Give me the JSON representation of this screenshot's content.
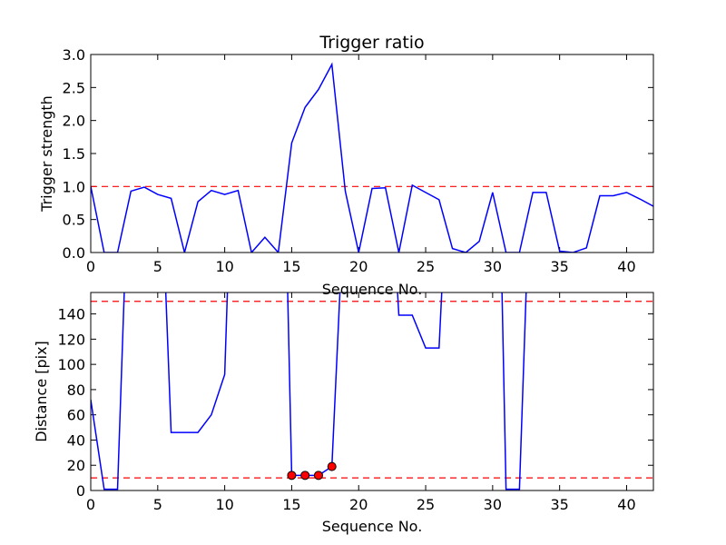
{
  "chart_data": [
    {
      "type": "line",
      "title": "Trigger ratio",
      "xlabel": "Sequence No.",
      "ylabel": "Trigger strength",
      "xlim": [
        0,
        42
      ],
      "ylim": [
        0,
        3.0
      ],
      "xticks": [
        "0",
        "5",
        "10",
        "15",
        "20",
        "25",
        "30",
        "35",
        "40"
      ],
      "yticks": [
        "0.0",
        "0.5",
        "1.0",
        "1.5",
        "2.0",
        "2.5",
        "3.0"
      ],
      "grid": false,
      "line_color": "#0000ff",
      "threshold_color": "#ff0000",
      "thresholds": [
        1.0
      ],
      "series": [
        {
          "x": [
            0,
            1,
            2,
            3,
            4,
            5,
            6,
            7,
            8,
            9,
            10,
            11,
            12,
            13,
            14,
            15,
            16,
            17,
            18,
            19,
            20,
            21,
            22,
            23,
            24,
            25,
            26,
            27,
            28,
            29,
            30,
            31,
            32,
            33,
            34,
            35,
            36,
            37,
            38,
            39,
            40,
            41,
            42
          ],
          "values": [
            1.0,
            0.0,
            0.0,
            0.93,
            0.99,
            0.88,
            0.82,
            0.0,
            0.77,
            0.94,
            0.88,
            0.94,
            0.0,
            0.23,
            0.0,
            1.66,
            2.2,
            2.47,
            2.85,
            0.93,
            0.0,
            0.97,
            0.98,
            0.0,
            1.02,
            0.91,
            0.8,
            0.06,
            0.0,
            0.17,
            0.91,
            0.0,
            0.0,
            0.91,
            0.91,
            0.02,
            0.0,
            0.07,
            0.86,
            0.86,
            0.91,
            0.81,
            0.7
          ]
        }
      ]
    },
    {
      "type": "line",
      "title": "",
      "xlabel": "Sequence No.",
      "ylabel": "Distance [pix]",
      "xlim": [
        0,
        42
      ],
      "ylim": [
        0,
        157
      ],
      "xticks": [
        "0",
        "5",
        "10",
        "15",
        "20",
        "25",
        "30",
        "35",
        "40"
      ],
      "yticks": [
        "0",
        "20",
        "40",
        "60",
        "80",
        "100",
        "120",
        "140"
      ],
      "grid": false,
      "line_color": "#0000ff",
      "threshold_color": "#ff0000",
      "marker_color": "#ff0000",
      "thresholds": [
        10,
        150
      ],
      "series": [
        {
          "x": [
            0,
            1,
            2,
            2.5,
            5.6,
            6,
            7,
            8,
            9,
            10,
            10.2,
            14.7,
            15,
            16,
            17,
            18,
            18.6,
            22.9,
            23,
            24,
            25,
            26,
            26.2,
            30.7,
            31,
            32,
            32.5
          ],
          "values": [
            72,
            1,
            1,
            157,
            157,
            46,
            46,
            46,
            60,
            92,
            157,
            157,
            12,
            12,
            12,
            19,
            157,
            157,
            139,
            139,
            113,
            113,
            157,
            157,
            1,
            1,
            157
          ],
          "breaks_after_x": [
            2.5,
            10.2,
            18.6,
            26.2
          ]
        }
      ],
      "markers": {
        "x": [
          15,
          16,
          17,
          18
        ],
        "values": [
          12,
          12,
          12,
          19
        ]
      }
    }
  ]
}
